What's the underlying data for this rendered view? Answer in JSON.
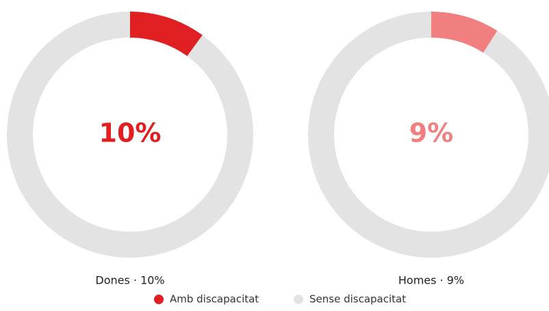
{
  "chart_data": [
    {
      "type": "donut",
      "title": "Dones · 10%",
      "categories": [
        "Amb discapacitat",
        "Sense discapacitat"
      ],
      "values": [
        10,
        90
      ],
      "value_labels": [
        "10%",
        null
      ],
      "colors": [
        "#e01f22",
        "#e3e3e3"
      ],
      "legend": "bottom"
    },
    {
      "type": "donut",
      "title": "Homes · 9%",
      "categories": [
        "Amb discapacitat",
        "Sense discapacitat"
      ],
      "values": [
        9,
        91
      ],
      "value_labels": [
        "9%",
        null
      ],
      "colors": [
        "#f17f7f",
        "#e3e3e3"
      ]
    }
  ]
}
